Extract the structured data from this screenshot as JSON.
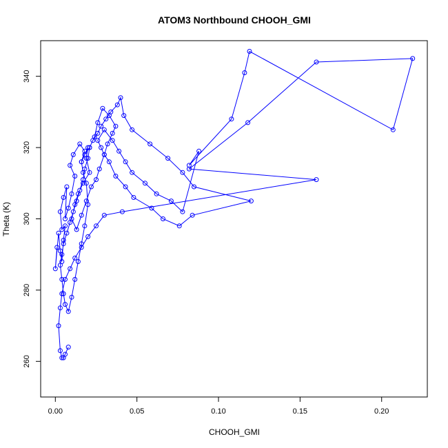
{
  "chart_data": {
    "type": "line",
    "title": "ATOM3 Northbound CHOOH_GMI",
    "xlabel": "CHOOH_GMI",
    "ylabel": "Theta (K)",
    "xlim": [
      -0.009,
      0.228
    ],
    "ylim": [
      250,
      350
    ],
    "xticks": [
      0.0,
      0.05,
      0.1,
      0.15,
      0.2
    ],
    "xtick_labels": [
      "0.00",
      "0.05",
      "0.10",
      "0.15",
      "0.20"
    ],
    "yticks": [
      260,
      280,
      300,
      320,
      340
    ],
    "ytick_labels": [
      "260",
      "280",
      "300",
      "320",
      "340"
    ],
    "grid": false,
    "markers": "open-circle",
    "colors": {
      "series": "#0000ff",
      "axis": "#000000",
      "background": "#ffffff"
    },
    "series": [
      {
        "x": [
          0.001,
          0.0,
          0.002,
          0.003,
          0.004,
          0.005,
          0.006,
          0.004,
          0.003,
          0.005,
          0.007,
          0.006,
          0.008,
          0.01,
          0.012,
          0.009,
          0.011,
          0.015,
          0.018,
          0.016,
          0.02,
          0.019,
          0.021,
          0.017,
          0.014,
          0.012,
          0.01,
          0.013,
          0.016,
          0.019,
          0.022,
          0.025,
          0.027,
          0.03,
          0.032,
          0.035,
          0.037,
          0.033,
          0.029,
          0.026,
          0.024,
          0.021,
          0.02,
          0.018,
          0.017,
          0.015,
          0.013,
          0.011,
          0.009,
          0.007,
          0.005,
          0.004,
          0.003,
          0.004,
          0.005,
          0.006,
          0.008,
          0.01,
          0.012,
          0.014,
          0.016,
          0.018,
          0.02,
          0.019,
          0.017,
          0.016,
          0.018,
          0.021,
          0.023,
          0.026,
          0.028,
          0.031,
          0.034,
          0.038,
          0.04,
          0.042,
          0.047,
          0.058,
          0.069,
          0.078,
          0.085,
          0.12,
          0.084,
          0.076,
          0.066,
          0.059,
          0.048,
          0.043,
          0.037,
          0.033,
          0.03,
          0.028,
          0.026,
          0.03,
          0.035,
          0.039,
          0.043,
          0.047,
          0.055,
          0.062,
          0.071,
          0.078,
          0.088,
          0.082,
          0.108,
          0.116,
          0.119,
          0.207,
          0.219,
          0.16,
          0.118,
          0.082,
          0.16,
          0.041,
          0.03,
          0.025,
          0.02,
          0.016,
          0.012,
          0.009,
          0.006,
          0.004,
          0.003,
          0.002,
          0.003,
          0.004,
          0.005,
          0.006,
          0.008
        ],
        "y": [
          292,
          286,
          296,
          291,
          288,
          294,
          298,
          297,
          302,
          306,
          309,
          300,
          303,
          307,
          312,
          315,
          318,
          321,
          319,
          316,
          320,
          317,
          313,
          310,
          307,
          304,
          300,
          297,
          301,
          305,
          309,
          311,
          314,
          318,
          321,
          324,
          326,
          329,
          331,
          327,
          323,
          320,
          317,
          314,
          311,
          308,
          305,
          302,
          299,
          296,
          293,
          290,
          287,
          283,
          279,
          276,
          274,
          278,
          283,
          288,
          293,
          298,
          304,
          310,
          313,
          316,
          318,
          320,
          322,
          324,
          326,
          328,
          330,
          332,
          334,
          329,
          325,
          321,
          317,
          313,
          309,
          305,
          301,
          298,
          300,
          303,
          306,
          309,
          312,
          316,
          318,
          320,
          322,
          325,
          322,
          319,
          316,
          313,
          310,
          307,
          305,
          302,
          319,
          315,
          328,
          341,
          347,
          325,
          345,
          344,
          327,
          314,
          311,
          302,
          301,
          298,
          295,
          292,
          289,
          286,
          283,
          279,
          275,
          270,
          263,
          261,
          261,
          262,
          264
        ]
      }
    ]
  }
}
